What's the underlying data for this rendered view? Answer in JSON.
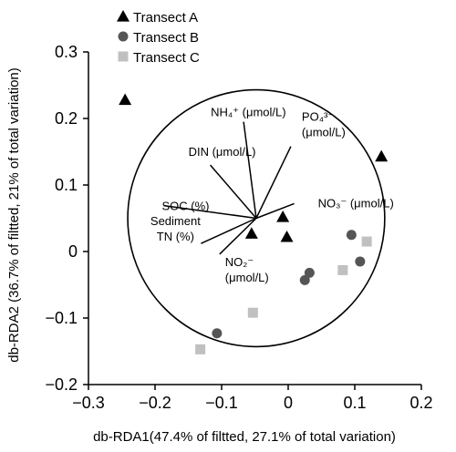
{
  "chart_data": {
    "type": "scatter",
    "xlabel": "db-RDA1(47.4% of filtted, 27.1% of total variation)",
    "ylabel": "db-RDA2 (36.7% of filtted, 21% of total variation)",
    "xlim": [
      -0.3,
      0.2
    ],
    "ylim": [
      -0.2,
      0.3
    ],
    "xticks": [
      -0.3,
      -0.2,
      -0.1,
      0,
      0.1,
      0.2
    ],
    "xtick_labels": [
      "−0.3",
      "−0.2",
      "−0.1",
      "0",
      "0.1",
      "0.2"
    ],
    "yticks": [
      -0.2,
      -0.1,
      0,
      0.1,
      0.2,
      0.3
    ],
    "ytick_labels": [
      "−0.2",
      "−0.1",
      "0",
      "0.1",
      "0.2",
      "0.3"
    ],
    "legend_position": "top-left",
    "series": [
      {
        "name": "Transect A",
        "marker": "triangle",
        "color": "#000000",
        "points": [
          {
            "x": -0.245,
            "y": 0.228
          },
          {
            "x": -0.055,
            "y": 0.027
          },
          {
            "x": -0.008,
            "y": 0.052
          },
          {
            "x": -0.002,
            "y": 0.022
          },
          {
            "x": 0.14,
            "y": 0.143
          }
        ]
      },
      {
        "name": "Transect B",
        "marker": "circle",
        "color": "#555555",
        "points": [
          {
            "x": -0.107,
            "y": -0.123
          },
          {
            "x": 0.025,
            "y": -0.043
          },
          {
            "x": 0.032,
            "y": -0.032
          },
          {
            "x": 0.095,
            "y": 0.025
          },
          {
            "x": 0.108,
            "y": -0.015
          }
        ]
      },
      {
        "name": "Transect C",
        "marker": "square",
        "color": "#c0c0c0",
        "points": [
          {
            "x": -0.132,
            "y": -0.147
          },
          {
            "x": -0.053,
            "y": -0.092
          },
          {
            "x": 0.082,
            "y": -0.028
          },
          {
            "x": 0.118,
            "y": 0.015
          }
        ]
      }
    ],
    "vectors": [
      {
        "label": "NH₄⁺ (μmol/L)",
        "x": -0.067,
        "y": 0.195
      },
      {
        "label": "PO₄³⁻ (μmol/L)",
        "x": 0.004,
        "y": 0.158
      },
      {
        "label": "DIN (μmol/L)",
        "x": -0.117,
        "y": 0.13
      },
      {
        "label": "SOC (%)",
        "x": -0.187,
        "y": 0.069
      },
      {
        "label": "NO₃⁻ (μmol/L)",
        "x": 0.009,
        "y": 0.072
      },
      {
        "label": "Sediment TN (%)",
        "x": -0.131,
        "y": 0.012
      },
      {
        "label": "NO₂⁻ (μmol/L)",
        "x": -0.103,
        "y": -0.004
      }
    ],
    "vector_origin": {
      "x": -0.048,
      "y": 0.05
    },
    "circle": {
      "center_x": -0.048,
      "center_y": 0.05,
      "radius": 0.193
    }
  }
}
